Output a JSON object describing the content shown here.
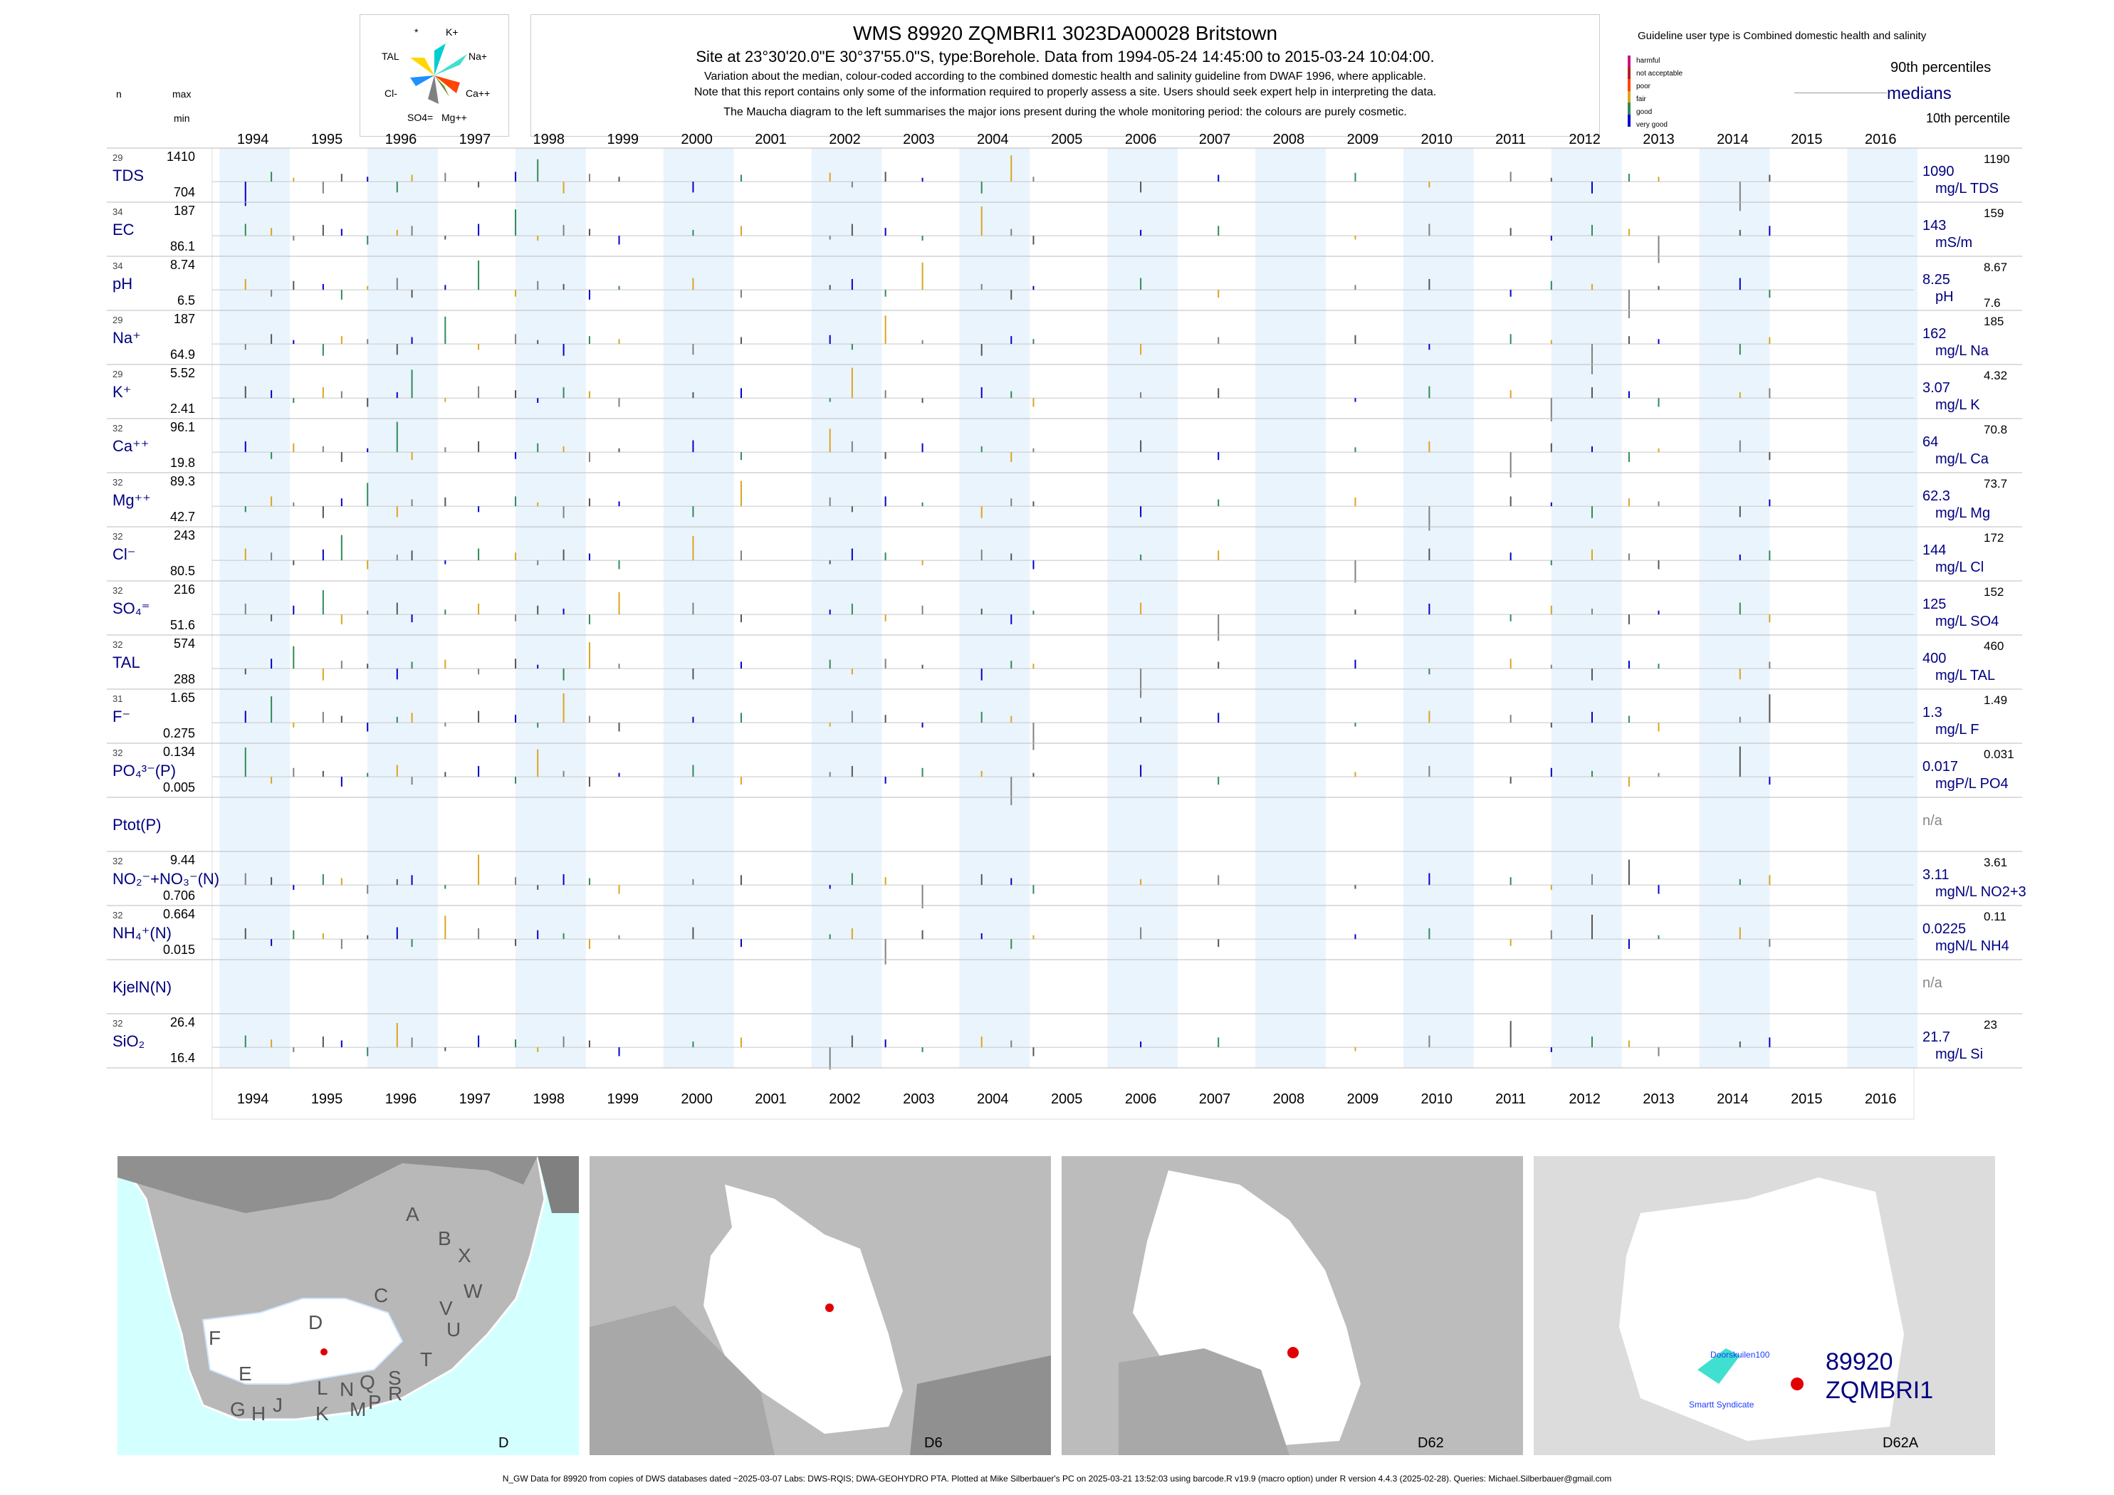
{
  "header": {
    "title": "WMS 89920 ZQMBRI1 3023DA00028 Britstown",
    "subtitle": "Site at 23°30'20.0\"E 30°37'55.0\"S, type:Borehole.  Data from 1994-05-24 14:45:00 to 2015-03-24 10:04:00.",
    "note1": "Variation about the median,  colour-coded according to the combined domestic health and salinity guideline from DWAF 1996, where applicable.",
    "note2": "Note that this report contains only some of the information required to properly assess a site. Users should seek expert help in interpreting the data.",
    "note3": "The Maucha diagram to the left summarises the major ions present during the whole monitoring period: the colours are purely cosmetic."
  },
  "maucha": {
    "labels": [
      "K+",
      "Na+",
      "Ca++",
      "Mg++",
      "SO4=",
      "Cl-",
      "TAL",
      "*"
    ]
  },
  "legend": {
    "guideline_text": "Guideline user type is Combined domestic health and salinity",
    "categories": [
      "harmful",
      "not acceptable",
      "poor",
      "fair",
      "good",
      "very good"
    ],
    "category_colors": [
      "#c71585",
      "#b22222",
      "#ff4500",
      "#daa520",
      "#2e8b57",
      "#0000cd"
    ],
    "p90_label": "90th percentiles",
    "medians_label": "medians",
    "p10_label": "10th percentile"
  },
  "col_heads": {
    "n": "n",
    "max": "max",
    "min": "min"
  },
  "years": [
    "1994",
    "1995",
    "1996",
    "1997",
    "1998",
    "1999",
    "2000",
    "2001",
    "2002",
    "2003",
    "2004",
    "2005",
    "2006",
    "2007",
    "2008",
    "2009",
    "2010",
    "2011",
    "2012",
    "2013",
    "2014",
    "2015",
    "2016"
  ],
  "chart_data": {
    "type": "bar",
    "x_range": [
      "1994-01-01",
      "2016-12-31"
    ],
    "shaded_years": [
      "1994",
      "1996",
      "1998",
      "2000",
      "2002",
      "2004",
      "2006",
      "2008",
      "2010",
      "2012",
      "2014",
      "2016"
    ],
    "sample_dates_approx": [
      1994.4,
      1994.75,
      1995.05,
      1995.45,
      1995.7,
      1996.05,
      1996.45,
      1996.65,
      1997.1,
      1997.55,
      1998.05,
      1998.35,
      1998.7,
      1999.05,
      1999.45,
      2000.45,
      2001.1,
      2002.3,
      2002.6,
      2003.05,
      2003.55,
      2004.35,
      2004.75,
      2005.05,
      2006.5,
      2007.55,
      2009.4,
      2010.4,
      2011.5,
      2012.05,
      2012.6,
      2013.1,
      2013.5,
      2014.6,
      2015.0
    ],
    "parameters": [
      {
        "label": "TDS",
        "n": "29",
        "max": "1410",
        "min": "704",
        "median": "1090",
        "unit": "mg/L TDS",
        "p90": "1190",
        "p10": ""
      },
      {
        "label": "EC",
        "n": "34",
        "max": "187",
        "min": "86.1",
        "median": "143",
        "unit": "mS/m",
        "p90": "159",
        "p10": ""
      },
      {
        "label": "pH",
        "n": "34",
        "max": "8.74",
        "min": "6.5",
        "median": "8.25",
        "unit": "pH",
        "p90": "8.67",
        "p10": "7.6"
      },
      {
        "label": "Na⁺",
        "n": "29",
        "max": "187",
        "min": "64.9",
        "median": "162",
        "unit": "mg/L Na",
        "p90": "185",
        "p10": ""
      },
      {
        "label": "K⁺",
        "n": "29",
        "max": "5.52",
        "min": "2.41",
        "median": "3.07",
        "unit": "mg/L K",
        "p90": "4.32",
        "p10": ""
      },
      {
        "label": "Ca⁺⁺",
        "n": "32",
        "max": "96.1",
        "min": "19.8",
        "median": "64",
        "unit": "mg/L Ca",
        "p90": "70.8",
        "p10": ""
      },
      {
        "label": "Mg⁺⁺",
        "n": "32",
        "max": "89.3",
        "min": "42.7",
        "median": "62.3",
        "unit": "mg/L Mg",
        "p90": "73.7",
        "p10": ""
      },
      {
        "label": "Cl⁻",
        "n": "32",
        "max": "243",
        "min": "80.5",
        "median": "144",
        "unit": "mg/L Cl",
        "p90": "172",
        "p10": ""
      },
      {
        "label": "SO₄⁼",
        "n": "32",
        "max": "216",
        "min": "51.6",
        "median": "125",
        "unit": "mg/L SO4",
        "p90": "152",
        "p10": ""
      },
      {
        "label": "TAL",
        "n": "32",
        "max": "574",
        "min": "288",
        "median": "400",
        "unit": "mg/L TAL",
        "p90": "460",
        "p10": ""
      },
      {
        "label": "F⁻",
        "n": "31",
        "max": "1.65",
        "min": "0.275",
        "median": "1.3",
        "unit": "mg/L F",
        "p90": "1.49",
        "p10": ""
      },
      {
        "label": "PO₄³⁻(P)",
        "n": "32",
        "max": "0.134",
        "min": "0.005",
        "median": "0.017",
        "unit": "mgP/L PO4",
        "p90": "0.031",
        "p10": ""
      },
      {
        "label": "Ptot(P)",
        "n": "",
        "max": "",
        "min": "",
        "median": "n/a",
        "unit": "",
        "p90": "",
        "p10": ""
      },
      {
        "label": "NO₂⁻+NO₃⁻(N)",
        "n": "32",
        "max": "9.44",
        "min": "0.706",
        "median": "3.11",
        "unit": "mgN/L NO2+3",
        "p90": "3.61",
        "p10": ""
      },
      {
        "label": "NH₄⁺(N)",
        "n": "32",
        "max": "0.664",
        "min": "0.015",
        "median": "0.0225",
        "unit": "mgN/L NH4",
        "p90": "0.11",
        "p10": ""
      },
      {
        "label": "KjelN(N)",
        "n": "",
        "max": "",
        "min": "",
        "median": "n/a",
        "unit": "",
        "p90": "",
        "p10": ""
      },
      {
        "label": "SiO₂",
        "n": "32",
        "max": "26.4",
        "min": "16.4",
        "median": "21.7",
        "unit": "mg/L Si",
        "p90": "23",
        "p10": ""
      }
    ]
  },
  "maps": [
    {
      "label": "D",
      "regions": [
        "A",
        "B",
        "X",
        "W",
        "C",
        "V",
        "U",
        "D",
        "T",
        "F",
        "E",
        "G",
        "H",
        "J",
        "K",
        "L",
        "M",
        "N",
        "P",
        "Q",
        "R",
        "S"
      ]
    },
    {
      "label": "D6"
    },
    {
      "label": "D62"
    },
    {
      "label": "D62A",
      "site_id": "89920",
      "site_code": "ZQMBRI1",
      "place1": "Doorskuilen100",
      "place2": "Smartt Syndicate"
    }
  ],
  "footer": "N_GW Data for 89920 from copies of DWS databases dated ~2025-03-07 Labs: DWS-RQIS; DWA-GEOHYDRO PTA. Plotted at Mike Silberbauer's PC on 2025-03-21 13:52:03 using barcode.R v19.9 (macro option) under R version 4.4.3 (2025-02-28). Queries: Michael.Silberbauer@gmail.com"
}
